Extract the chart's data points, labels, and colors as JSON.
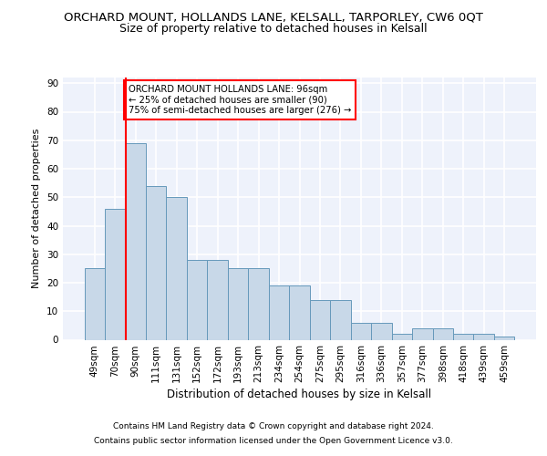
{
  "title": "ORCHARD MOUNT, HOLLANDS LANE, KELSALL, TARPORLEY, CW6 0QT",
  "subtitle": "Size of property relative to detached houses in Kelsall",
  "xlabel": "Distribution of detached houses by size in Kelsall",
  "ylabel": "Number of detached properties",
  "categories": [
    "49sqm",
    "70sqm",
    "90sqm",
    "111sqm",
    "131sqm",
    "152sqm",
    "172sqm",
    "193sqm",
    "213sqm",
    "234sqm",
    "254sqm",
    "275sqm",
    "295sqm",
    "316sqm",
    "336sqm",
    "357sqm",
    "377sqm",
    "398sqm",
    "418sqm",
    "439sqm",
    "459sqm"
  ],
  "values": [
    25,
    46,
    69,
    54,
    50,
    28,
    28,
    25,
    25,
    19,
    19,
    14,
    14,
    6,
    6,
    2,
    4,
    4,
    2,
    2,
    1
  ],
  "bar_color": "#c8d8e8",
  "bar_edge_color": "#6699bb",
  "red_line_index": 2,
  "annotation_text": "ORCHARD MOUNT HOLLANDS LANE: 96sqm\n← 25% of detached houses are smaller (90)\n75% of semi-detached houses are larger (276) →",
  "annotation_box_color": "white",
  "annotation_box_edge": "red",
  "ylim": [
    0,
    92
  ],
  "yticks": [
    0,
    10,
    20,
    30,
    40,
    50,
    60,
    70,
    80,
    90
  ],
  "footer_line1": "Contains HM Land Registry data © Crown copyright and database right 2024.",
  "footer_line2": "Contains public sector information licensed under the Open Government Licence v3.0.",
  "background_color": "#eef2fb",
  "grid_color": "white",
  "title_fontsize": 9.5,
  "subtitle_fontsize": 9,
  "xlabel_fontsize": 8.5,
  "ylabel_fontsize": 8,
  "tick_fontsize": 7.5,
  "footer_fontsize": 6.5
}
